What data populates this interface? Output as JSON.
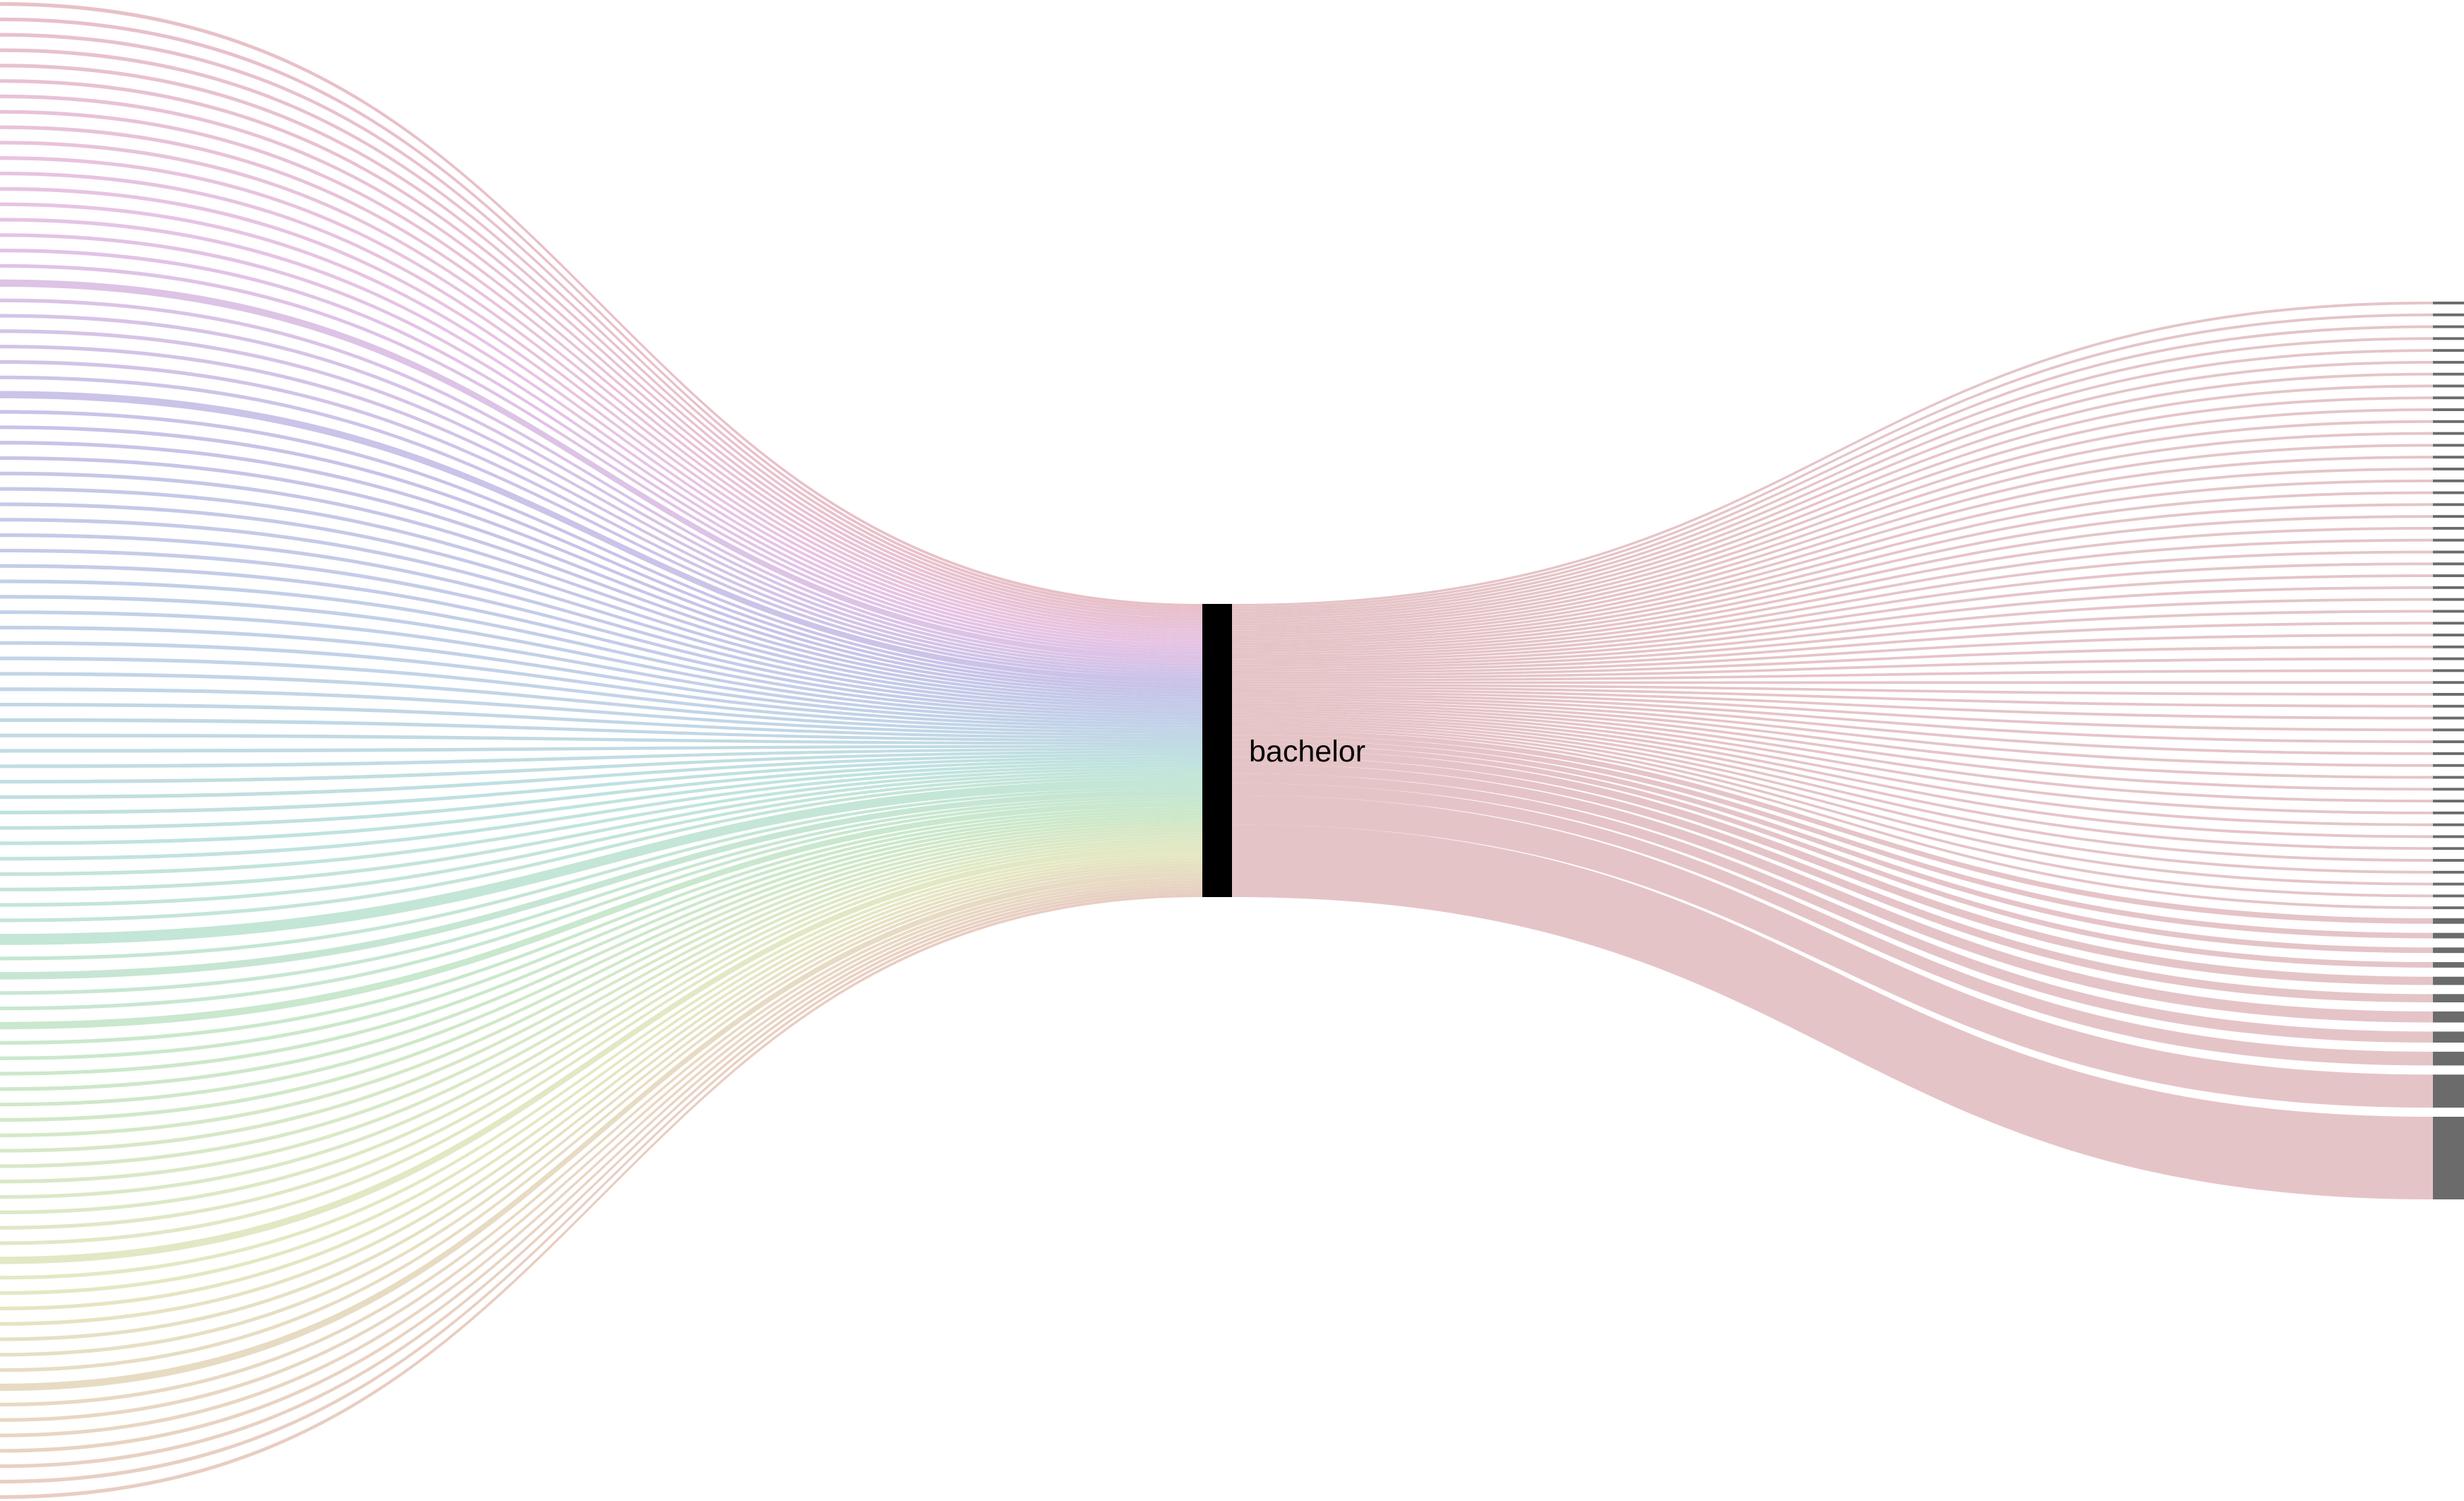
{
  "diagram": {
    "type": "sankey",
    "center_node": {
      "label": "bachelor",
      "color": "#000000"
    },
    "target_node_color": "#6b6b6b",
    "source_link_count": 96,
    "source_link_thick": [
      {
        "index": 18,
        "value": 2
      },
      {
        "index": 25,
        "value": 2
      },
      {
        "index": 60,
        "value": 3
      },
      {
        "index": 62,
        "value": 2
      },
      {
        "index": 65,
        "value": 2
      },
      {
        "index": 80,
        "value": 2
      },
      {
        "index": 88,
        "value": 2
      }
    ],
    "target_values": [
      1,
      1,
      1,
      1,
      1,
      1,
      1,
      1,
      1,
      1,
      1,
      1,
      1,
      1,
      1,
      1,
      1,
      1,
      1,
      1,
      1,
      1,
      1,
      1,
      1,
      1,
      1,
      1,
      1,
      1,
      1,
      1,
      1,
      1,
      1,
      1,
      1,
      1,
      1,
      1,
      1,
      1,
      1,
      1,
      1,
      1,
      1,
      1,
      1,
      1,
      1,
      1,
      2,
      2,
      2,
      2,
      3,
      3,
      4,
      4,
      5,
      12,
      30
    ],
    "colors": {
      "target_links": "#e4c1c4",
      "source_palette": [
        "#e6b9c2",
        "#e4bde2",
        "#c1bde6",
        "#bbcde6",
        "#b9e0dc",
        "#c6e6c4",
        "#e2e5bd",
        "#e6c8bb"
      ]
    }
  }
}
